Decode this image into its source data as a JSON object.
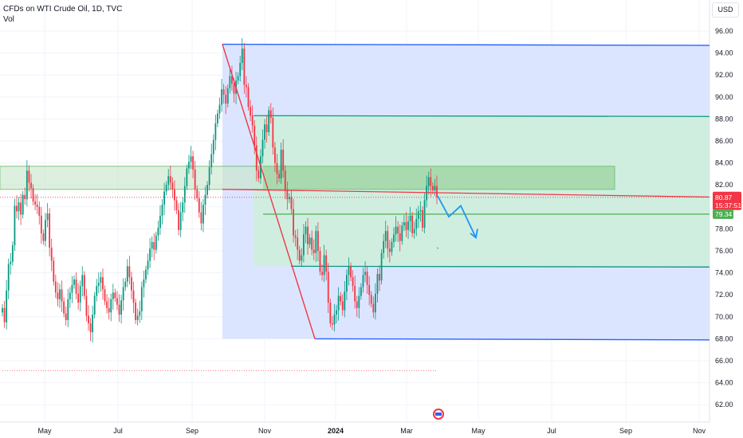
{
  "legend": {
    "symbol_line": "CFDs on WTI Crude Oil, 1D, TVC",
    "vol_label": "Vol"
  },
  "currency": "USD",
  "colors": {
    "up": "#089981",
    "down": "#f23645",
    "channel_fill": "#d6e0ff",
    "channel_line": "#2962ff",
    "green_fill": "#cdeedd",
    "green_line": "#089981",
    "zone_line": "#4caf50",
    "wedge_line": "#f23645",
    "arrow": "#2196f3"
  },
  "chart_data": {
    "type": "candlestick",
    "y_range": [
      61,
      98
    ],
    "y_ticks": [
      "96.00",
      "94.00",
      "92.00",
      "90.00",
      "88.00",
      "86.00",
      "84.00",
      "82.00",
      "80.00",
      "78.00",
      "76.00",
      "74.00",
      "72.00",
      "70.00",
      "68.00",
      "66.00",
      "64.00",
      "62.00"
    ],
    "x_ticks": [
      {
        "label": "May",
        "bold": false
      },
      {
        "label": "Jul",
        "bold": false
      },
      {
        "label": "Sep",
        "bold": false
      },
      {
        "label": "Nov",
        "bold": false
      },
      {
        "label": "2024",
        "bold": true
      },
      {
        "label": "Mar",
        "bold": false
      },
      {
        "label": "May",
        "bold": false
      },
      {
        "label": "Jul",
        "bold": false
      },
      {
        "label": "Sep",
        "bold": false
      },
      {
        "label": "Nov",
        "bold": false
      }
    ],
    "series_closes": [
      70.8,
      69.5,
      72.4,
      74.8,
      75.0,
      76.5,
      80.1,
      79.6,
      80.4,
      79.3,
      81.1,
      80.7,
      83.3,
      82.2,
      81.7,
      80.5,
      80.2,
      80.0,
      79.2,
      77.6,
      76.9,
      78.8,
      79.4,
      76.3,
      75.1,
      73.2,
      72.2,
      71.6,
      72.5,
      71.4,
      70.3,
      69.7,
      71.6,
      72.2,
      72.9,
      73.4,
      72.1,
      71.3,
      72.8,
      73.8,
      71.9,
      70.1,
      69.4,
      68.6,
      70.2,
      71.9,
      72.8,
      73.1,
      73.6,
      72.5,
      71.4,
      70.8,
      70.4,
      71.6,
      72.2,
      71.7,
      71.1,
      70.2,
      71.5,
      72.7,
      73.2,
      74.6,
      73.6,
      72.4,
      71.3,
      69.7,
      70.1,
      70.5,
      72.7,
      73.4,
      74.3,
      75.1,
      76.2,
      76.8,
      76.1,
      77.4,
      78.1,
      79.2,
      80.2,
      81.4,
      82.0,
      82.8,
      82.2,
      81.6,
      80.6,
      79.7,
      77.9,
      79.5,
      80.4,
      81.9,
      83.5,
      84.1,
      84.6,
      83.4,
      81.6,
      80.8,
      79.5,
      78.5,
      80.2,
      81.1,
      82.0,
      83.6,
      84.8,
      86.1,
      87.6,
      88.5,
      89.3,
      90.7,
      90.2,
      89.4,
      90.8,
      91.9,
      91.2,
      90.3,
      91.5,
      91.9,
      93.1,
      94.4,
      91.1,
      90.9,
      89.1,
      88.3,
      87.4,
      85.6,
      83.3,
      82.6,
      84.6,
      86.1,
      87.5,
      86.8,
      88.8,
      88.1,
      85.4,
      84.0,
      83.0,
      82.6,
      85.2,
      83.3,
      81.5,
      80.7,
      80.9,
      79.8,
      77.4,
      77.2,
      76.1,
      75.1,
      75.6,
      77.5,
      78.2,
      76.6,
      77.2,
      76.1,
      75.8,
      77.8,
      76.0,
      74.1,
      73.8,
      75.6,
      74.1,
      71.3,
      69.4,
      69.3,
      70.2,
      70.6,
      71.9,
      71.4,
      70.6,
      72.3,
      73.8,
      74.6,
      73.6,
      72.8,
      71.4,
      70.8,
      71.9,
      72.7,
      73.8,
      74.1,
      72.9,
      72.0,
      71.2,
      70.4,
      72.1,
      73.9,
      73.3,
      75.8,
      76.9,
      77.8,
      76.2,
      75.9,
      76.8,
      77.5,
      78.2,
      77.6,
      76.9,
      78.3,
      78.6,
      77.9,
      78.7,
      79.2,
      77.6,
      78.0,
      78.9,
      79.6,
      79.7,
      78.1,
      80.6,
      81.9,
      82.7,
      81.9,
      81.5,
      81.9,
      80.9
    ],
    "levels": {
      "last_price": "80.87",
      "countdown": "15:37:51",
      "zone_price": "79.34"
    },
    "channel": {
      "start_top": 94.8,
      "end_top": 94.7,
      "start_bottom": 68.0,
      "end_bottom": 67.9
    },
    "green_box": {
      "top": 88.3,
      "bottom": 74.6
    },
    "resistance_zone": {
      "top": 83.7,
      "bottom": 81.6
    },
    "wedge_line_low": 68.0,
    "wedge_line_high": 94.8
  }
}
